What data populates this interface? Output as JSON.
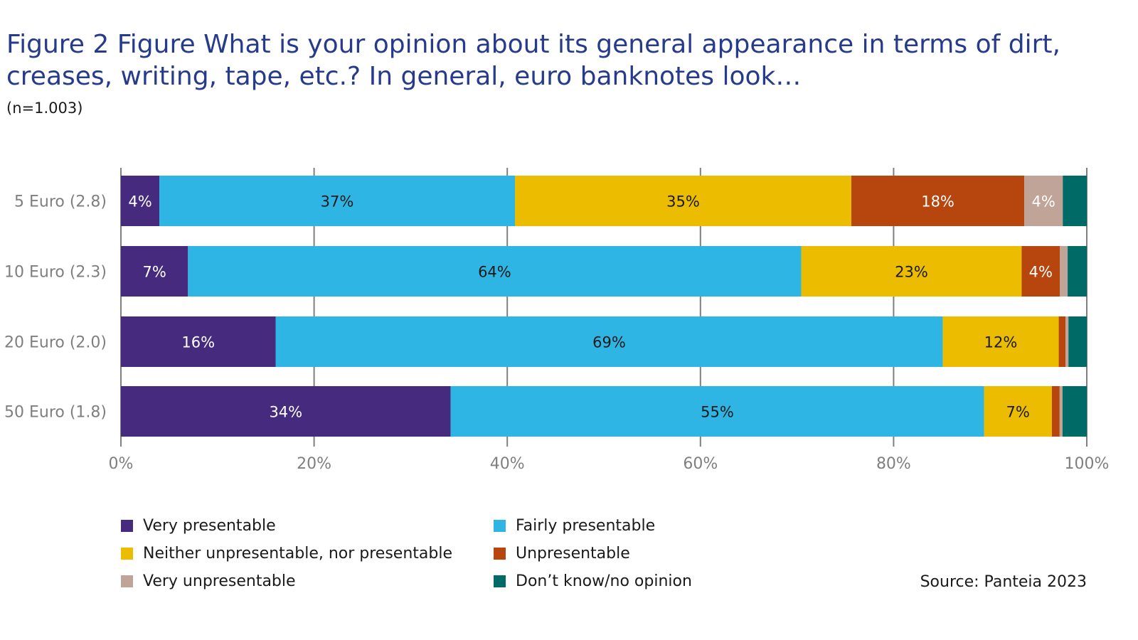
{
  "title": "Figure 2  Figure  What is your opinion about its general appearance in terms of dirt, creases, writing, tape, etc.? In general, euro banknotes look…",
  "subtitle": "(n=1.003)",
  "source": "Source: Panteia 2023",
  "chart_data": {
    "type": "bar",
    "orientation": "horizontal",
    "stacked": true,
    "percent_scale": true,
    "categories": [
      "5 Euro (2.8)",
      "10 Euro (2.3)",
      "20 Euro (2.0)",
      "50 Euro (1.8)"
    ],
    "x_ticks": [
      "0%",
      "20%",
      "40%",
      "60%",
      "80%",
      "100%"
    ],
    "xlim": [
      0,
      100
    ],
    "grid": true,
    "legend_position": "bottom",
    "series": [
      {
        "name": "Very presentable",
        "color": "#452a7e",
        "label_color": "#ffffff",
        "values": [
          4,
          7,
          16,
          34
        ],
        "labels": [
          "4%",
          "7%",
          "16%",
          "34%"
        ]
      },
      {
        "name": "Fairly presentable",
        "color": "#2fb5e4",
        "label_color": "#1a1a1a",
        "values": [
          37,
          64,
          69,
          55
        ],
        "labels": [
          "37%",
          "64%",
          "69%",
          "55%"
        ]
      },
      {
        "name": "Neither unpresentable, nor presentable",
        "color": "#ebbc00",
        "label_color": "#1a1a1a",
        "values": [
          35,
          23,
          12,
          7
        ],
        "labels": [
          "35%",
          "23%",
          "12%",
          "7%"
        ]
      },
      {
        "name": "Unpresentable",
        "color": "#b7450e",
        "label_color": "#ffffff",
        "values": [
          18,
          4,
          0.7,
          0.8
        ],
        "labels": [
          "18%",
          "4%",
          "",
          ""
        ]
      },
      {
        "name": "Very unpresentable",
        "color": "#bfa497",
        "label_color": "#ffffff",
        "values": [
          4,
          0.8,
          0.3,
          0.3
        ],
        "labels": [
          "4%",
          "",
          "",
          ""
        ]
      },
      {
        "name": "Don’t know/no opinion",
        "color": "#006b66",
        "label_color": "#ffffff",
        "values": [
          2.5,
          2,
          1.9,
          2.5
        ],
        "labels": [
          "",
          "",
          "",
          ""
        ]
      }
    ]
  },
  "legend_layout": [
    [
      0,
      1
    ],
    [
      2,
      3
    ],
    [
      4,
      5
    ]
  ]
}
